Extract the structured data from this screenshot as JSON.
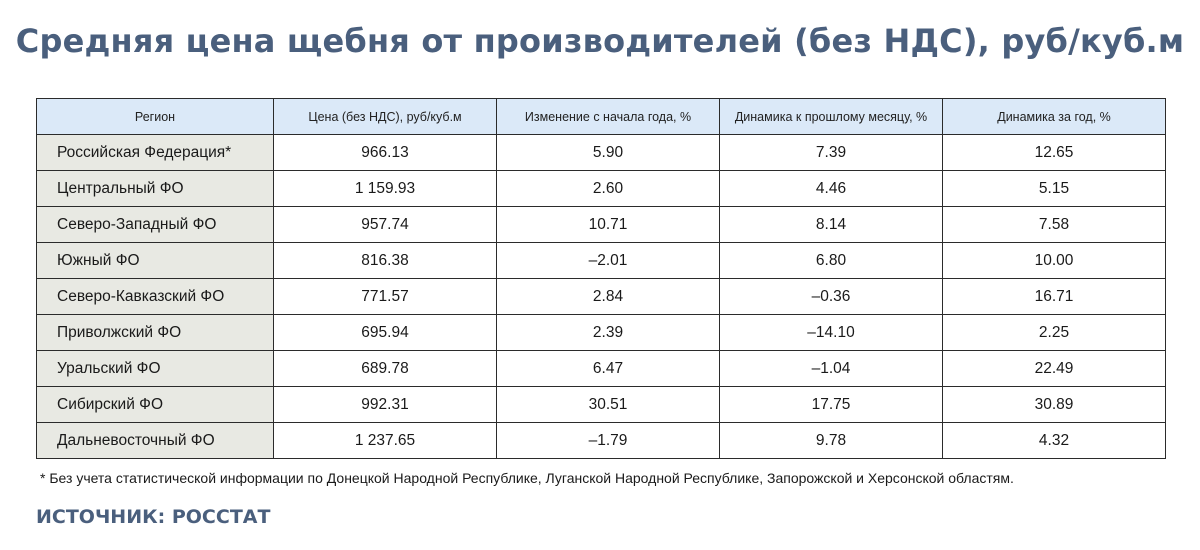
{
  "title": "Средняя цена щебня от производителей (без НДС), руб/куб.м",
  "table": {
    "headers": [
      "Регион",
      "Цена (без НДС), руб/куб.м",
      "Изменение с начала года, %",
      "Динамика к прошлому месяцу, %",
      "Динамика за год, %"
    ],
    "rows": [
      [
        "Российская Федерация*",
        "966.13",
        "5.90",
        "7.39",
        "12.65"
      ],
      [
        "Центральный ФО",
        "1 159.93",
        "2.60",
        "4.46",
        "5.15"
      ],
      [
        "Северо-Западный ФО",
        "957.74",
        "10.71",
        "8.14",
        "7.58"
      ],
      [
        "Южный ФО",
        "816.38",
        "–2.01",
        "6.80",
        "10.00"
      ],
      [
        "Северо-Кавказский ФО",
        "771.57",
        "2.84",
        "–0.36",
        "16.71"
      ],
      [
        "Приволжский ФО",
        "695.94",
        "2.39",
        "–14.10",
        "2.25"
      ],
      [
        "Уральский ФО",
        "689.78",
        "6.47",
        "–1.04",
        "22.49"
      ],
      [
        "Сибирский ФО",
        "992.31",
        "30.51",
        "17.75",
        "30.89"
      ],
      [
        "Дальневосточный ФО",
        "1 237.65",
        "–1.79",
        "9.78",
        "4.32"
      ]
    ]
  },
  "footnote": "* Без учета статистической информации по Донецкой Народной Республике, Луганской Народной Республике, Запорожской и Херсонской областям.",
  "source": "ИСТОЧНИК: РОССТАТ",
  "colors": {
    "title": "#4a5f7d",
    "header_bg": "#dbe9f8",
    "region_bg": "#e8e9e3"
  }
}
